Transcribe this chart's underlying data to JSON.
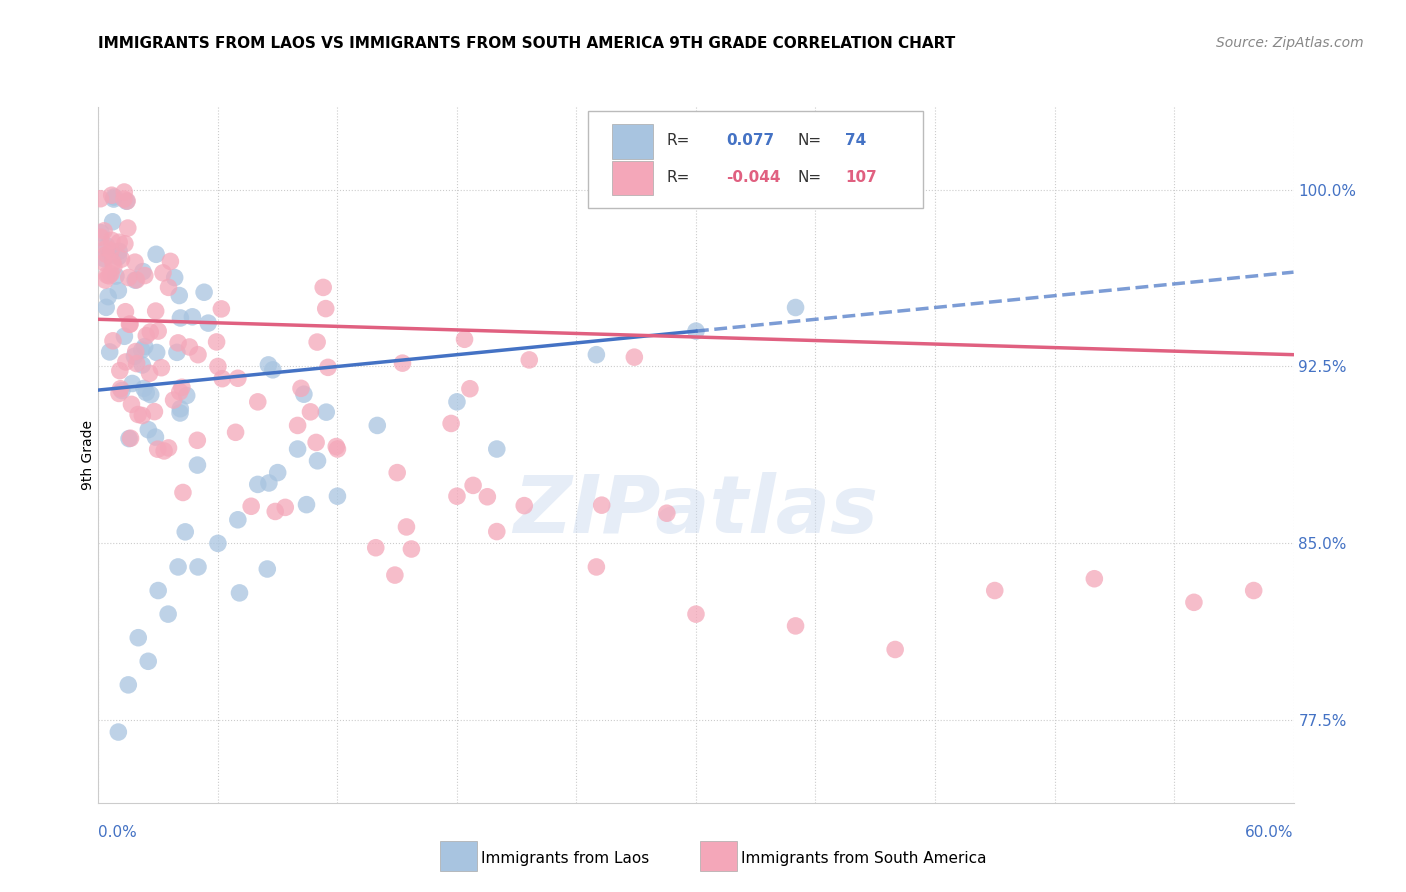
{
  "title": "IMMIGRANTS FROM LAOS VS IMMIGRANTS FROM SOUTH AMERICA 9TH GRADE CORRELATION CHART",
  "source": "Source: ZipAtlas.com",
  "ylabel": "9th Grade",
  "xmin": 0.0,
  "xmax": 60.0,
  "ymin": 74.0,
  "ymax": 103.5,
  "ytick_values": [
    77.5,
    85.0,
    92.5,
    100.0
  ],
  "legend_r_blue": "0.077",
  "legend_n_blue": "74",
  "legend_r_pink": "-0.044",
  "legend_n_pink": "107",
  "blue_color": "#a8c4e0",
  "pink_color": "#f4a7b9",
  "blue_line_color": "#4472c4",
  "pink_line_color": "#e06080",
  "blue_trend_x0": 0.0,
  "blue_trend_y0": 91.5,
  "blue_trend_x1": 60.0,
  "blue_trend_y1": 96.5,
  "blue_solid_x1": 30.0,
  "pink_trend_x0": 0.0,
  "pink_trend_y0": 94.5,
  "pink_trend_x1": 60.0,
  "pink_trend_y1": 93.0
}
